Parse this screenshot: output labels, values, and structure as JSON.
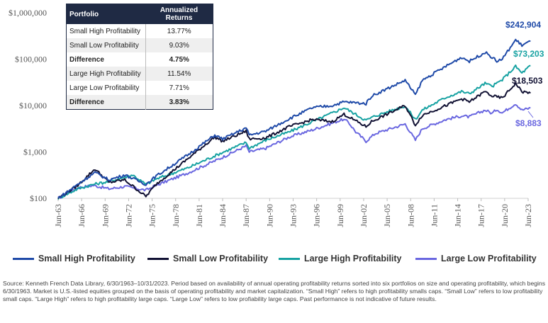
{
  "chart_data": {
    "type": "line",
    "ylabel": "",
    "xlabel": "",
    "yscale": "log",
    "ylim": [
      100,
      1000000
    ],
    "y_ticks": [
      "$100",
      "$1,000",
      "$10,000",
      "$100,000",
      "$1,000,000"
    ],
    "y_tick_values": [
      100,
      1000,
      10000,
      100000,
      1000000
    ],
    "x_ticks": [
      "Jun-63",
      "Jun-66",
      "Jun-69",
      "Jun-72",
      "Jun-75",
      "Jun-78",
      "Jun-81",
      "Jun-84",
      "Jun-87",
      "Jun-90",
      "Jun-93",
      "Jun-96",
      "Jun-99",
      "Jun-02",
      "Jun-05",
      "Jun-08",
      "Jun-11",
      "Jun-14",
      "Jun-17",
      "Jun-20",
      "Jun-23"
    ],
    "grid": false,
    "legend_position": "bottom",
    "series": [
      {
        "name": "Large Low Profitability",
        "color": "#6a67e0",
        "x": [
          1963.5,
          1966,
          1968,
          1970,
          1972,
          1974.7,
          1976,
          1980,
          1984,
          1987.5,
          1987.9,
          1990,
          1993,
          1996,
          1999.8,
          2000.5,
          2001.5,
          2002.8,
          2004,
          2007.8,
          2009.1,
          2010,
          2013,
          2015,
          2016,
          2018,
          2018.9,
          2019.5,
          2020.2,
          2021.9,
          2022.7,
          2023.8
        ],
        "y": [
          100,
          170,
          190,
          160,
          180,
          150,
          190,
          350,
          700,
          1350,
          1000,
          1200,
          2100,
          3000,
          5000,
          4500,
          2700,
          1700,
          2500,
          4000,
          1800,
          3200,
          5000,
          6000,
          5700,
          8000,
          6800,
          8300,
          7000,
          11000,
          8000,
          8883
        ]
      },
      {
        "name": "Large High Profitability",
        "color": "#17a2a2",
        "x": [
          1963.5,
          1966,
          1968,
          1970,
          1973,
          1974.7,
          1976,
          1980,
          1984,
          1987.5,
          1987.9,
          1990,
          1993,
          1996,
          2000,
          2002.8,
          2004,
          2007.8,
          2009.1,
          2010,
          2013,
          2015,
          2016,
          2018,
          2018.9,
          2020.2,
          2021.9,
          2022.7,
          2023.8
        ],
        "y": [
          100,
          160,
          200,
          230,
          320,
          200,
          260,
          450,
          900,
          1600,
          1200,
          1800,
          2700,
          4500,
          9000,
          4800,
          6000,
          9800,
          5000,
          8000,
          15000,
          20000,
          18000,
          30000,
          26000,
          36000,
          70000,
          50000,
          73203
        ]
      },
      {
        "name": "Small Low Profitability",
        "color": "#111133",
        "x": [
          1963.5,
          1966,
          1968.2,
          1970,
          1972,
          1974.7,
          1976,
          1980,
          1983.5,
          1984.5,
          1987.5,
          1987.9,
          1990,
          1993,
          1996,
          1998.5,
          2000,
          2002.8,
          2003.5,
          2007.8,
          2009.1,
          2010,
          2013,
          2015,
          2016,
          2018,
          2018.9,
          2020.2,
          2021.9,
          2022.7,
          2023.8
        ],
        "y": [
          100,
          190,
          430,
          220,
          250,
          110,
          200,
          700,
          2100,
          1700,
          2800,
          1900,
          2000,
          3500,
          5000,
          4500,
          6500,
          3500,
          4500,
          10000,
          3800,
          6200,
          10000,
          14000,
          12000,
          20000,
          16000,
          14500,
          30000,
          20000,
          18503
        ]
      },
      {
        "name": "Small High Profitability",
        "color": "#1f4aa8",
        "x": [
          1963.5,
          1966,
          1968.2,
          1970,
          1972,
          1974.7,
          1976,
          1980,
          1983.5,
          1984.5,
          1987.5,
          1987.9,
          1990,
          1993,
          1996,
          1998.5,
          2000,
          2002.8,
          2003.5,
          2007.8,
          2009.1,
          2010,
          2013,
          2015,
          2016,
          2018,
          2018.9,
          2019.5,
          2020.2,
          2021.9,
          2022.7,
          2023.8
        ],
        "y": [
          100,
          200,
          360,
          250,
          320,
          200,
          300,
          850,
          2300,
          1900,
          3300,
          2300,
          2800,
          5200,
          9000,
          10000,
          12000,
          11000,
          16000,
          35000,
          17000,
          35000,
          70000,
          110000,
          90000,
          140000,
          110000,
          90000,
          100000,
          260000,
          200000,
          242904
        ]
      }
    ],
    "end_labels": [
      {
        "series": "Small High Profitability",
        "text": "$242,904",
        "color": "#1f4aa8"
      },
      {
        "series": "Large High Profitability",
        "text": "$73,203",
        "color": "#17a2a2"
      },
      {
        "series": "Small Low Profitability",
        "text": "$18,503",
        "color": "#111133"
      },
      {
        "series": "Large Low Profitability",
        "text": "$8,883",
        "color": "#6a67e0"
      }
    ]
  },
  "table": {
    "header_portfolio": "Portfolio",
    "header_returns": "Annualized Returns",
    "rows": [
      {
        "label": "Small High Profitability",
        "value": "13.77%"
      },
      {
        "label": "Small Low Profitability",
        "value": "9.03%"
      },
      {
        "label": "Difference",
        "value": "4.75%"
      },
      {
        "label": "Large High Profitability",
        "value": "11.54%"
      },
      {
        "label": "Large Low Profitability",
        "value": "7.71%"
      },
      {
        "label": "Difference",
        "value": "3.83%"
      }
    ]
  },
  "legend": [
    {
      "label": "Small High Profitability",
      "color": "#1f4aa8"
    },
    {
      "label": "Small Low Profitability",
      "color": "#111133"
    },
    {
      "label": "Large High Profitability",
      "color": "#17a2a2"
    },
    {
      "label": "Large Low Profitability",
      "color": "#6a67e0"
    }
  ],
  "source_text": "Source: Kenneth French Data Library, 6/30/1963–10/31/2023. Period based on availability of annual operating profitability returns sorted into six portfolios on size and operating profitability, which begins 6/30/1963. Market is U.S.-listed equities grouped on the basis of operating profitability and market capitalization. “Small High” refers to high profitability smalls caps. “Small Low” refers to low profitability small caps. “Large High” refers to high profitability large caps. “Large Low” refers to low profiability large caps. Past performance is not indicative of future results."
}
